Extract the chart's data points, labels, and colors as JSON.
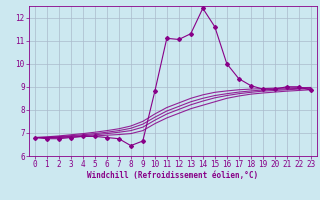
{
  "xlabel": "Windchill (Refroidissement éolien,°C)",
  "background_color": "#cce8f0",
  "line_color": "#880088",
  "grid_color": "#aabbcc",
  "x_data": [
    0,
    1,
    2,
    3,
    4,
    5,
    6,
    7,
    8,
    9,
    10,
    11,
    12,
    13,
    14,
    15,
    16,
    17,
    18,
    19,
    20,
    21,
    22,
    23
  ],
  "main_curve": [
    6.8,
    6.75,
    6.75,
    6.8,
    6.85,
    6.85,
    6.8,
    6.75,
    6.45,
    6.65,
    8.8,
    11.1,
    11.05,
    11.3,
    12.4,
    11.6,
    10.0,
    9.35,
    9.05,
    8.9,
    8.9,
    9.0,
    9.0,
    8.85
  ],
  "ref_lines": [
    [
      6.8,
      6.8,
      6.8,
      6.82,
      6.85,
      6.87,
      6.9,
      6.93,
      6.97,
      7.1,
      7.4,
      7.65,
      7.85,
      8.05,
      8.2,
      8.35,
      8.5,
      8.6,
      8.68,
      8.73,
      8.77,
      8.81,
      8.84,
      8.87
    ],
    [
      6.8,
      6.8,
      6.82,
      6.85,
      6.88,
      6.92,
      6.97,
      7.03,
      7.1,
      7.25,
      7.55,
      7.82,
      8.02,
      8.22,
      8.38,
      8.52,
      8.62,
      8.7,
      8.76,
      8.81,
      8.84,
      8.87,
      8.9,
      8.92
    ],
    [
      6.8,
      6.81,
      6.84,
      6.88,
      6.92,
      6.97,
      7.03,
      7.1,
      7.2,
      7.38,
      7.68,
      7.95,
      8.15,
      8.35,
      8.5,
      8.62,
      8.7,
      8.77,
      8.82,
      8.86,
      8.89,
      8.91,
      8.93,
      8.95
    ],
    [
      6.8,
      6.83,
      6.87,
      6.92,
      6.97,
      7.03,
      7.1,
      7.18,
      7.3,
      7.5,
      7.82,
      8.1,
      8.3,
      8.5,
      8.65,
      8.76,
      8.82,
      8.87,
      8.9,
      8.92,
      8.94,
      8.95,
      8.96,
      8.97
    ]
  ],
  "ylim": [
    6.0,
    12.5
  ],
  "xlim": [
    -0.5,
    23.5
  ],
  "yticks": [
    6,
    7,
    8,
    9,
    10,
    11,
    12
  ],
  "xticks": [
    0,
    1,
    2,
    3,
    4,
    5,
    6,
    7,
    8,
    9,
    10,
    11,
    12,
    13,
    14,
    15,
    16,
    17,
    18,
    19,
    20,
    21,
    22,
    23
  ],
  "marker": "D",
  "marker_size": 2.0,
  "line_width": 0.8,
  "tick_fontsize": 5.5,
  "xlabel_fontsize": 5.5
}
